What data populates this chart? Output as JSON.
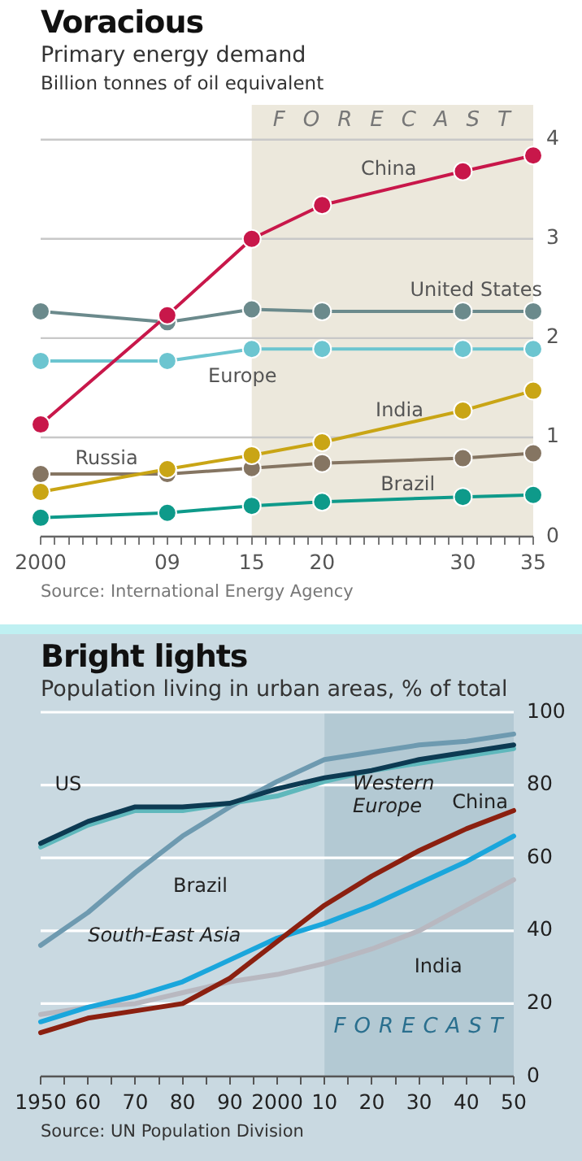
{
  "chart_data": [
    {
      "type": "line",
      "title": "Voracious",
      "subtitle": "Primary energy demand",
      "ylabel": "Billion tonnes of oil equivalent",
      "x": [
        2000,
        2009,
        2015,
        2020,
        2030,
        2035
      ],
      "series": [
        {
          "name": "China",
          "color": "#c8174a",
          "values": [
            1.13,
            2.23,
            3.0,
            3.34,
            3.68,
            3.84
          ]
        },
        {
          "name": "United States",
          "color": "#6b8a8c",
          "values": [
            2.27,
            2.16,
            2.29,
            2.27,
            2.27,
            2.27
          ]
        },
        {
          "name": "Europe",
          "color": "#6cc5d0",
          "values": [
            1.77,
            1.77,
            1.89,
            1.89,
            1.89,
            1.89
          ]
        },
        {
          "name": "India",
          "color": "#c9a515",
          "values": [
            0.45,
            0.68,
            0.82,
            0.95,
            1.27,
            1.47
          ]
        },
        {
          "name": "Russia",
          "color": "#857562",
          "values": [
            0.63,
            0.63,
            0.69,
            0.74,
            0.79,
            0.84
          ]
        },
        {
          "name": "Brazil",
          "color": "#0e9a8a",
          "values": [
            0.19,
            0.24,
            0.31,
            0.35,
            0.4,
            0.42
          ]
        }
      ],
      "xlim": [
        2000,
        2035
      ],
      "xticks": [
        {
          "value": 2000,
          "label": "2000"
        },
        {
          "value": 2001,
          "label": null
        },
        {
          "value": 2002,
          "label": null
        },
        {
          "value": 2003,
          "label": null
        },
        {
          "value": 2004,
          "label": null
        },
        {
          "value": 2005,
          "label": null
        },
        {
          "value": 2006,
          "label": null
        },
        {
          "value": 2007,
          "label": null
        },
        {
          "value": 2008,
          "label": null
        },
        {
          "value": 2009,
          "label": "09"
        },
        {
          "value": 2010,
          "label": null
        },
        {
          "value": 2011,
          "label": null
        },
        {
          "value": 2012,
          "label": null
        },
        {
          "value": 2013,
          "label": null
        },
        {
          "value": 2014,
          "label": null
        },
        {
          "value": 2015,
          "label": "15"
        },
        {
          "value": 2016,
          "label": null
        },
        {
          "value": 2017,
          "label": null
        },
        {
          "value": 2018,
          "label": null
        },
        {
          "value": 2019,
          "label": null
        },
        {
          "value": 2020,
          "label": "20"
        },
        {
          "value": 2021,
          "label": null
        },
        {
          "value": 2022,
          "label": null
        },
        {
          "value": 2023,
          "label": null
        },
        {
          "value": 2024,
          "label": null
        },
        {
          "value": 2025,
          "label": null
        },
        {
          "value": 2026,
          "label": null
        },
        {
          "value": 2027,
          "label": null
        },
        {
          "value": 2028,
          "label": null
        },
        {
          "value": 2029,
          "label": null
        },
        {
          "value": 2030,
          "label": "30"
        },
        {
          "value": 2031,
          "label": null
        },
        {
          "value": 2032,
          "label": null
        },
        {
          "value": 2033,
          "label": null
        },
        {
          "value": 2034,
          "label": null
        },
        {
          "value": 2035,
          "label": "35"
        }
      ],
      "ylim": [
        0,
        4.35
      ],
      "yticks": [
        0,
        1,
        2,
        3,
        4
      ],
      "grid": "y",
      "marker": "circle",
      "legend": false,
      "bands": [
        {
          "axis": "x",
          "from": 2015,
          "to": 2035,
          "label": "FORECAST",
          "color": "#ece8dc"
        }
      ],
      "annotations": [
        "Source: International Energy Agency"
      ]
    },
    {
      "type": "line",
      "title": "Bright lights",
      "subtitle": "Population living in urban areas, % of total",
      "x": [
        1950,
        1960,
        1970,
        1980,
        1990,
        2000,
        2010,
        2020,
        2030,
        2040,
        2050
      ],
      "series": [
        {
          "name": "US",
          "color": "#0d3a52",
          "values": [
            64,
            70,
            74,
            74,
            75,
            79,
            82,
            84,
            87,
            89,
            91
          ]
        },
        {
          "name": "Western Europe",
          "color": "#5fb8bc",
          "values": [
            63,
            69,
            73,
            73,
            75,
            77,
            81,
            84,
            86,
            88,
            90
          ]
        },
        {
          "name": "Brazil",
          "color": "#6e9ab0",
          "values": [
            36,
            45,
            56,
            66,
            74,
            81,
            87,
            89,
            91,
            92,
            94
          ]
        },
        {
          "name": "China",
          "color": "#8b2010",
          "values": [
            12,
            16,
            18,
            20,
            27,
            37,
            47,
            55,
            62,
            68,
            73
          ]
        },
        {
          "name": "South-East Asia",
          "color": "#1aa6dc",
          "values": [
            15,
            19,
            22,
            26,
            32,
            38,
            42,
            47,
            53,
            59,
            66
          ]
        },
        {
          "name": "India",
          "color": "#b8b8c0",
          "values": [
            17,
            19,
            20,
            23,
            26,
            28,
            31,
            35,
            40,
            47,
            54
          ]
        }
      ],
      "xlim": [
        1950,
        2050
      ],
      "xticks": [
        {
          "value": 1950,
          "label": "1950"
        },
        {
          "value": 1955,
          "label": null
        },
        {
          "value": 1960,
          "label": "60"
        },
        {
          "value": 1965,
          "label": null
        },
        {
          "value": 1970,
          "label": "70"
        },
        {
          "value": 1975,
          "label": null
        },
        {
          "value": 1980,
          "label": "80"
        },
        {
          "value": 1985,
          "label": null
        },
        {
          "value": 1990,
          "label": "90"
        },
        {
          "value": 1995,
          "label": null
        },
        {
          "value": 2000,
          "label": "2000"
        },
        {
          "value": 2005,
          "label": null
        },
        {
          "value": 2010,
          "label": "10"
        },
        {
          "value": 2015,
          "label": null
        },
        {
          "value": 2020,
          "label": "20"
        },
        {
          "value": 2025,
          "label": null
        },
        {
          "value": 2030,
          "label": "30"
        },
        {
          "value": 2035,
          "label": null
        },
        {
          "value": 2040,
          "label": "40"
        },
        {
          "value": 2045,
          "label": null
        },
        {
          "value": 2050,
          "label": "50"
        }
      ],
      "ylim": [
        0,
        100
      ],
      "yticks": [
        0,
        20,
        40,
        60,
        80,
        100
      ],
      "grid": "y",
      "marker": "none",
      "legend": false,
      "bands": [
        {
          "axis": "x",
          "from": 2010,
          "to": 2050,
          "label": "FORECAST",
          "color": "#b3c9d3"
        }
      ],
      "annotations": [
        "Source: UN Population Division"
      ]
    }
  ]
}
